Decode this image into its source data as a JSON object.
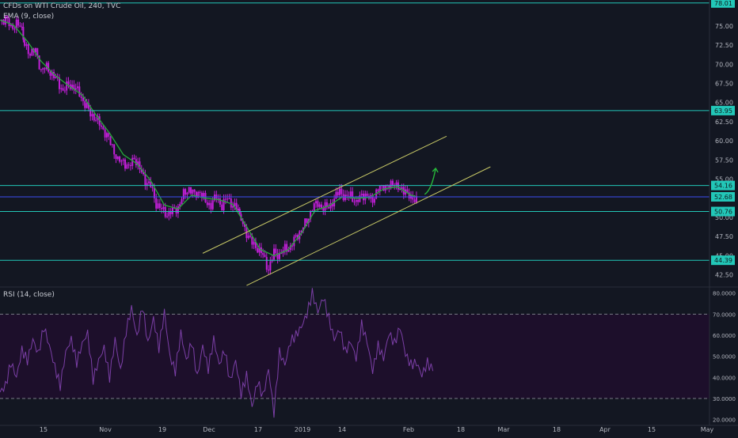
{
  "symbol_line": "CFDs on WTI Crude Oil, 240, TVC",
  "ema_label": "EMA (9, close)",
  "rsi_label": "RSI (14, close)",
  "colors": {
    "background": "#131722",
    "candle": "#c21fd8",
    "ema": "#27a83a",
    "horizontal_level": "#22c7b8",
    "channel": "#c7c866",
    "arrow": "#27b83a",
    "rsi_line": "#7b3fa6",
    "rsi_band": "#1d0f2b",
    "axis_text": "#b2b5be",
    "current_price_line": "#3c4df5"
  },
  "chart_data": [
    {
      "type": "candlestick",
      "title": "CFDs on WTI Crude Oil, 240, TVC",
      "ylim": [
        41.0,
        78.4
      ],
      "x_ticks": [
        "15",
        "Nov",
        "19",
        "Dec",
        "17",
        "2019",
        "14",
        "Feb",
        "18",
        "Mar",
        "18",
        "Apr",
        "15",
        "May"
      ],
      "y_ticks": [
        "75.00",
        "72.50",
        "70.00",
        "67.50",
        "65.00",
        "62.50",
        "60.00",
        "57.50",
        "55.00",
        "52.50",
        "50.00",
        "47.50",
        "45.00",
        "42.50"
      ],
      "close_path": [
        {
          "d": 0,
          "v": 75.6
        },
        {
          "d": 4,
          "v": 76.0
        },
        {
          "d": 8,
          "v": 74.8
        },
        {
          "d": 12,
          "v": 75.3
        },
        {
          "d": 16,
          "v": 74.6
        },
        {
          "d": 18,
          "v": 72.5
        },
        {
          "d": 22,
          "v": 71.5
        },
        {
          "d": 26,
          "v": 71.8
        },
        {
          "d": 30,
          "v": 69.2
        },
        {
          "d": 34,
          "v": 69.6
        },
        {
          "d": 38,
          "v": 68.7
        },
        {
          "d": 42,
          "v": 67.8
        },
        {
          "d": 46,
          "v": 66.5
        },
        {
          "d": 50,
          "v": 67.4
        },
        {
          "d": 54,
          "v": 67.0
        },
        {
          "d": 58,
          "v": 66.2
        },
        {
          "d": 62,
          "v": 64.7
        },
        {
          "d": 66,
          "v": 63.6
        },
        {
          "d": 70,
          "v": 62.8
        },
        {
          "d": 74,
          "v": 61.9
        },
        {
          "d": 78,
          "v": 60.6
        },
        {
          "d": 82,
          "v": 59.3
        },
        {
          "d": 86,
          "v": 57.3
        },
        {
          "d": 90,
          "v": 57.4
        },
        {
          "d": 94,
          "v": 56.4
        },
        {
          "d": 98,
          "v": 57.9
        },
        {
          "d": 102,
          "v": 56.3
        },
        {
          "d": 106,
          "v": 54.8
        },
        {
          "d": 110,
          "v": 54.1
        },
        {
          "d": 114,
          "v": 51.8
        },
        {
          "d": 118,
          "v": 51.0
        },
        {
          "d": 122,
          "v": 50.4
        },
        {
          "d": 126,
          "v": 50.8
        },
        {
          "d": 130,
          "v": 51.3
        },
        {
          "d": 134,
          "v": 53.0
        },
        {
          "d": 138,
          "v": 53.8
        },
        {
          "d": 142,
          "v": 52.9
        },
        {
          "d": 146,
          "v": 53.4
        },
        {
          "d": 150,
          "v": 52.0
        },
        {
          "d": 154,
          "v": 51.6
        },
        {
          "d": 158,
          "v": 52.8
        },
        {
          "d": 162,
          "v": 51.4
        },
        {
          "d": 166,
          "v": 52.6
        },
        {
          "d": 170,
          "v": 51.5
        },
        {
          "d": 174,
          "v": 50.9
        },
        {
          "d": 176,
          "v": 49.6
        },
        {
          "d": 180,
          "v": 48.0
        },
        {
          "d": 184,
          "v": 46.6
        },
        {
          "d": 188,
          "v": 46.0
        },
        {
          "d": 192,
          "v": 45.0
        },
        {
          "d": 196,
          "v": 43.2
        },
        {
          "d": 200,
          "v": 45.4
        },
        {
          "d": 204,
          "v": 45.1
        },
        {
          "d": 208,
          "v": 45.9
        },
        {
          "d": 212,
          "v": 46.1
        },
        {
          "d": 216,
          "v": 47.4
        },
        {
          "d": 220,
          "v": 48.4
        },
        {
          "d": 224,
          "v": 49.5
        },
        {
          "d": 228,
          "v": 51.3
        },
        {
          "d": 232,
          "v": 51.8
        },
        {
          "d": 236,
          "v": 51.2
        },
        {
          "d": 240,
          "v": 51.4
        },
        {
          "d": 244,
          "v": 52.3
        },
        {
          "d": 248,
          "v": 53.6
        },
        {
          "d": 252,
          "v": 52.4
        },
        {
          "d": 256,
          "v": 53.1
        },
        {
          "d": 260,
          "v": 51.7
        },
        {
          "d": 264,
          "v": 53.1
        },
        {
          "d": 268,
          "v": 52.6
        },
        {
          "d": 272,
          "v": 52.4
        },
        {
          "d": 276,
          "v": 53.6
        },
        {
          "d": 280,
          "v": 54.2
        },
        {
          "d": 284,
          "v": 53.9
        },
        {
          "d": 288,
          "v": 54.7
        },
        {
          "d": 292,
          "v": 53.4
        },
        {
          "d": 296,
          "v": 53.7
        },
        {
          "d": 300,
          "v": 52.2
        },
        {
          "d": 304,
          "v": 52.6
        }
      ],
      "ema_path": [
        {
          "d": 0,
          "v": 75.8
        },
        {
          "d": 10,
          "v": 75.1
        },
        {
          "d": 20,
          "v": 73.0
        },
        {
          "d": 30,
          "v": 70.4
        },
        {
          "d": 40,
          "v": 68.6
        },
        {
          "d": 50,
          "v": 67.2
        },
        {
          "d": 60,
          "v": 66.0
        },
        {
          "d": 70,
          "v": 63.4
        },
        {
          "d": 80,
          "v": 61.0
        },
        {
          "d": 90,
          "v": 58.2
        },
        {
          "d": 100,
          "v": 57.0
        },
        {
          "d": 110,
          "v": 54.8
        },
        {
          "d": 120,
          "v": 51.6
        },
        {
          "d": 130,
          "v": 51.1
        },
        {
          "d": 140,
          "v": 52.9
        },
        {
          "d": 150,
          "v": 52.5
        },
        {
          "d": 160,
          "v": 52.3
        },
        {
          "d": 170,
          "v": 51.7
        },
        {
          "d": 180,
          "v": 48.8
        },
        {
          "d": 190,
          "v": 45.8
        },
        {
          "d": 200,
          "v": 45.0
        },
        {
          "d": 210,
          "v": 45.7
        },
        {
          "d": 220,
          "v": 47.9
        },
        {
          "d": 230,
          "v": 50.9
        },
        {
          "d": 240,
          "v": 51.5
        },
        {
          "d": 250,
          "v": 52.7
        },
        {
          "d": 260,
          "v": 52.5
        },
        {
          "d": 270,
          "v": 52.6
        },
        {
          "d": 280,
          "v": 53.7
        },
        {
          "d": 290,
          "v": 54.0
        },
        {
          "d": 300,
          "v": 52.9
        },
        {
          "d": 304,
          "v": 52.7
        }
      ],
      "horizontal_levels": [
        78.01,
        63.95,
        54.16,
        50.76,
        44.39
      ],
      "level_labels": [
        "78.01",
        "63.95",
        "54.16",
        "50.76",
        "44.39"
      ],
      "current_price": 52.68,
      "current_price_label": "52.68",
      "channel_lines": [
        {
          "d1": 148,
          "v1": 45.3,
          "d2": 326,
          "v2": 60.6
        },
        {
          "d1": 180,
          "v1": 41.1,
          "d2": 358,
          "v2": 56.6
        }
      ],
      "arrow": {
        "d1": 310,
        "v1": 53.0,
        "d2": 318,
        "v2": 56.4
      }
    },
    {
      "type": "line",
      "title": "RSI (14, close)",
      "ylim": [
        18.0,
        82.5
      ],
      "y_ticks": [
        "80.0000",
        "70.0000",
        "60.0000",
        "50.0000",
        "40.0000",
        "30.0000",
        "20.0000"
      ],
      "band": [
        30,
        70
      ],
      "points": [
        {
          "d": 0,
          "v": 33
        },
        {
          "d": 4,
          "v": 36
        },
        {
          "d": 8,
          "v": 47
        },
        {
          "d": 12,
          "v": 40
        },
        {
          "d": 16,
          "v": 53
        },
        {
          "d": 20,
          "v": 48
        },
        {
          "d": 24,
          "v": 58
        },
        {
          "d": 28,
          "v": 51
        },
        {
          "d": 32,
          "v": 64
        },
        {
          "d": 36,
          "v": 55
        },
        {
          "d": 40,
          "v": 45
        },
        {
          "d": 44,
          "v": 36
        },
        {
          "d": 48,
          "v": 52
        },
        {
          "d": 52,
          "v": 58
        },
        {
          "d": 56,
          "v": 47
        },
        {
          "d": 60,
          "v": 56
        },
        {
          "d": 64,
          "v": 61
        },
        {
          "d": 68,
          "v": 39
        },
        {
          "d": 72,
          "v": 48
        },
        {
          "d": 76,
          "v": 54
        },
        {
          "d": 80,
          "v": 40
        },
        {
          "d": 84,
          "v": 58
        },
        {
          "d": 88,
          "v": 43
        },
        {
          "d": 92,
          "v": 62
        },
        {
          "d": 96,
          "v": 73
        },
        {
          "d": 100,
          "v": 59
        },
        {
          "d": 104,
          "v": 74
        },
        {
          "d": 108,
          "v": 56
        },
        {
          "d": 112,
          "v": 68
        },
        {
          "d": 116,
          "v": 54
        },
        {
          "d": 120,
          "v": 71
        },
        {
          "d": 124,
          "v": 50
        },
        {
          "d": 128,
          "v": 43
        },
        {
          "d": 132,
          "v": 61
        },
        {
          "d": 136,
          "v": 48
        },
        {
          "d": 140,
          "v": 57
        },
        {
          "d": 144,
          "v": 40
        },
        {
          "d": 148,
          "v": 55
        },
        {
          "d": 152,
          "v": 44
        },
        {
          "d": 156,
          "v": 58
        },
        {
          "d": 160,
          "v": 46
        },
        {
          "d": 164,
          "v": 53
        },
        {
          "d": 168,
          "v": 38
        },
        {
          "d": 172,
          "v": 48
        },
        {
          "d": 176,
          "v": 32
        },
        {
          "d": 180,
          "v": 41
        },
        {
          "d": 184,
          "v": 26
        },
        {
          "d": 188,
          "v": 38
        },
        {
          "d": 192,
          "v": 31
        },
        {
          "d": 196,
          "v": 44
        },
        {
          "d": 200,
          "v": 23
        },
        {
          "d": 204,
          "v": 52
        },
        {
          "d": 208,
          "v": 46
        },
        {
          "d": 212,
          "v": 57
        },
        {
          "d": 216,
          "v": 60
        },
        {
          "d": 220,
          "v": 64
        },
        {
          "d": 224,
          "v": 70
        },
        {
          "d": 228,
          "v": 80
        },
        {
          "d": 232,
          "v": 71
        },
        {
          "d": 236,
          "v": 78
        },
        {
          "d": 240,
          "v": 68
        },
        {
          "d": 244,
          "v": 58
        },
        {
          "d": 248,
          "v": 63
        },
        {
          "d": 252,
          "v": 52
        },
        {
          "d": 256,
          "v": 57
        },
        {
          "d": 260,
          "v": 49
        },
        {
          "d": 264,
          "v": 65
        },
        {
          "d": 268,
          "v": 57
        },
        {
          "d": 272,
          "v": 43
        },
        {
          "d": 276,
          "v": 55
        },
        {
          "d": 280,
          "v": 49
        },
        {
          "d": 284,
          "v": 61
        },
        {
          "d": 288,
          "v": 56
        },
        {
          "d": 292,
          "v": 64
        },
        {
          "d": 296,
          "v": 51
        },
        {
          "d": 300,
          "v": 46
        },
        {
          "d": 304,
          "v": 47
        },
        {
          "d": 308,
          "v": 41
        },
        {
          "d": 312,
          "v": 47
        },
        {
          "d": 316,
          "v": 43
        }
      ]
    }
  ]
}
